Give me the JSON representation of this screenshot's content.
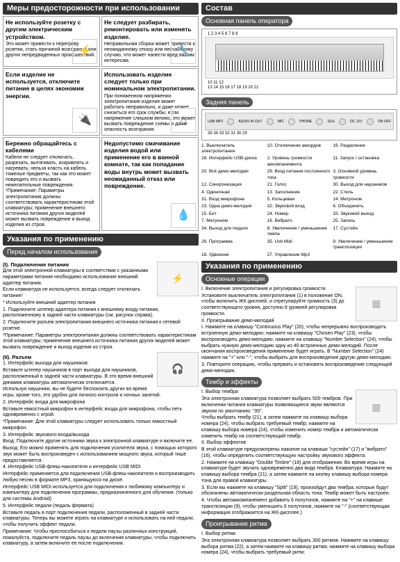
{
  "left": {
    "header": "Меры предосторожности при использовании",
    "warns": [
      {
        "t": "Не используйте розетку с другим электрическим устройством.",
        "d": "Это может привести к перегреву розетки, стать причиной возгорания или других непредвиденных происшествий.",
        "icon": "⚡"
      },
      {
        "t": "Не следует разбирать, ремонтировать или изменять изделие.",
        "d": "Неправильная сборка может привести к неожиданному отказу или несчастному случаю, что может нанести вред вашим интересам.",
        "icon": "🔧"
      },
      {
        "t": "Если изделие не используется, отключите питание в целях экономии энергии.",
        "d": "",
        "icon": "🔌"
      },
      {
        "t": "Использовать изделие следует только при номинальном электропитании.",
        "d": "При пониженном напряжении электропитания изделие может работать неправильно, и даже может снизиться его срок службы; если напряжение слишком велико, это может вызвать повреждение схемы и даже опасность возгорания.",
        "icon": "△"
      },
      {
        "t": "Бережно обращайтесь с кабелями",
        "d": "Кабели не следует отключать, разрезать, вытягивать, искривлять и нагревать; нельзя класть на кабель тяжелые предметы, так как это может повредить его и вызвать нежелательные повреждения. *Примечание: Параметры электропитания должны соответствовать характеристикам этой клавиатуры; применение внешнего источника питания других моделей может вызвать повреждение и выход изделия из строя.",
        "icon": "⌁"
      },
      {
        "t": "Недопустимо смачивание изделия водой или применение его в ванной комнате, так как попадание воды внутрь может вызвать неожиданный отказ или повреждение.",
        "d": "",
        "icon": "💧"
      }
    ],
    "instructions_header": "Указания по применению",
    "sub1": "Перед началом использования",
    "sec1_title": "(I). Подключение питания",
    "sec1": [
      "Для этой электронной клавиатуры в соответствии с указанными параметрами питания необходимо использование внешний адаптер питания.",
      "Если клавиатура не используется, всегда следует отключать питание!",
      "* Используйте внешний адаптер питания",
      "1. Подключите штепер адаптера питания к внешнему входу питания, расположенному в задней части клавиатуры (см. рисунок справа).",
      "2. Подключите разъем электропитания внешнего источника питания к сетевой розетке.",
      "*Примечание: Параметры электропитания должны соответствовать характеристикам этой клавиатуры; применение внешнего источника питания других моделей может вызвать повреждение и выход изделия из строя."
    ],
    "sec2_title": "(II). Разъем",
    "sec2": [
      "1. Интерфейс выхода для наушников:",
      "Вставьте штепер наушников в порт выхода для наушников, расположенный в задней части клавиатуры. В это время внешний динамик клавиатуры автоматически отключается.",
      "Используя наушники, вы не будете беспокоить других во время игры, кроме того, это удобно для личного контроля и ночных занятий.",
      "2. Интерфейс входа для микрофона",
      "Вставьте емкостный микрофон в интерфейс входа для микрофона, чтобы петь одновременно с игрой.",
      "*Примечание: Для этой клавиатуры следует использовать только емкостный микрофон.",
      "3. Интерфейс звукового входа/выхода",
      "Вход: Подключите другие источники звука к электронной клавиатуре и включите ее.",
      "Выход: Его можно применять для подключения усилителя звука, с помощью которого звук может быть воспроизведен с использованием мощного звука, который тише предоставляется.",
      "4. Интерфейс USB-флеш-накопителя и интерфейс USB MIDI",
      "Интерфейс применяется для подключения USB-флеш-накопителя и воспроизводить любую песню в формате MP3, хранящуюся на диске.",
      "Интерфейс USB MIDI используется для подключения к любимому компьютеру и компьютеру для подключения программы, предназначенного для обучения. (только для системы Android)",
      "5. Интерфейс педали (педаль фермата)",
      "Вставьте педаль в порт подключения педали, расположенный в задней части клавиатуры. Теперь вы можете играть на клавиатуре и использовать на ней педали, чтобы получить эффект педали.",
      "Примечание: Чтобы приспособиться к педали паузы различных конструкций, пожалуйста, подключите педаль паузы до включения клавиатуры, чтобы подключить клавиатуру, а затем включите ее после подключения."
    ]
  },
  "right": {
    "header": "Состав",
    "panel1": "Основная панель оператора",
    "panel2": "Задняя панель",
    "nums_top": "1 2 3 4 5 6 7 8 9",
    "nums_mid": "10 11 12",
    "nums_bot": "13 14 15 16 17 18 19 20 21",
    "rear_labels": [
      "USB MP3",
      "AUDIO IN OUT",
      "MIC",
      "PHONE",
      "SUS",
      "DC 12V",
      "ON OFF"
    ],
    "rear_nums": "35 34 33 32 31 30 29",
    "legend": [
      "1. Выключатель электропитания",
      "10. Отключение аккордов",
      "19. Разделение",
      "28. Интерфейс USB-диска",
      "2. Уровень громкости аккомпанемента",
      "11. Запуск / остановка",
      "20. Всё демо-мелодии",
      "29. Вход питания постоянного тока",
      "3. Основной уровень громкости",
      "12. Синхронизация",
      "21. Голос",
      "30. Выход для наушников",
      "4. Одиночная",
      "13. Заполнение",
      "22. Стиль",
      "31. Вход микрофона",
      "5. Кольцевая",
      "14. Метроном",
      "23. Одна демо-мелодия",
      "32. Звуковой вход",
      "6. Объединить",
      "15. Бит",
      "24. Номер",
      "33. Звуковой выход",
      "7. Метроном",
      "16. Вибрато",
      "25. Запись",
      "34. Выход для педали",
      "8. Увеличение / уменьшение темпа",
      "17. Сустейн",
      "26. Программа",
      "35. Usb Midi",
      "9. Увеличение / уменьшение транспозиции",
      "18. Удвоение",
      "27. Управление Mp3",
      ""
    ],
    "instructions_header": "Указания по применению",
    "sub2": "Основные операции",
    "op1": [
      "I. Включение электропитания и регулировка громкости",
      "Установите выключатель электропитания (1) в положение ON, чтобы включить ЖК-дисплей, и отрегулируйте громкость (3) до соответствующего уровня, доступно 8 уровней регулировки громкости.",
      "II. Проигрывание демо-мелодий",
      "I. Нажмите на клавишу \"Continuous Play\" (20), чтобы непрерывно воспроизводить встроенную демо-мелодию; нажмите на клавишу \"Chosen Play\" (23), чтобы воспроизводить демо-мелодию; нажмите на клавишу \"Number Selection\" (24), чтобы выбрать нужную демо-мелодию одну из 40 встроенных демо-мелодий. После окончания воспроизведения применение будет играть. В \"Number Selection\" (24) нажмите на \"+\" или \"-\", чтобы выбрать для воспроизведения другую демо-мелодию.",
      "3. Повторите операцию, чтобы прервать и остановить воспроизведение следующей демо-мелодии."
    ],
    "sub3": "Тембр и эффекты",
    "op2": [
      "I. Выбор тембра",
      "Эта электронная клавиатура позволяет выбрать 500 тембров. При включении питания клавиатуры появляющиеся звуки являются звуком по умолчанию: \"00\".",
      "Чтобы выбрать тембр (21), а затем нажмите на клавишу выбора номера (24), чтобы выбрать требуемый тембр; нажмите на клавишу выбора номера (24), чтобы изменить номер тембра и автоматически изменить тембр на соответствующий тембр.",
      "II. Выбор эффектов",
      "В этой клавиатуре предусмотрены нажатие на клавиши \"сустейн\" (17) и \"вибрато\" (16), чтобы определить соответствующую настройку звукового эффекта.",
      "2. Нажмите на клавишу \"Double Timbre\" (18) для отображения. Во время игры на клавиатуре будет звучать одновременно два вида тембра. Клавиатура: Нажмите на клавишу выбора тембра (21), а затем нажмите на кнопку клавишу выбора номера тона для правой клавиатуры.",
      "3. Если вы нажмете на клавишу \"Split\" (19), произойдут два тембра, которые будут обозначены автоматически раздельная область тона. Тембр может быть настроен.",
      "4. Чтобы автоаккомпанемент добавить 6 полутонов, нажмите на \"+\" на клавише транспозиции (9), чтобы уменьшить 6 полутонов, нажмите на \"-\" (соответствующая информация отображается на ЖК-дисплее.)"
    ],
    "sub4": "Проигрывание ритма",
    "op3": [
      "I. Выбор ритма",
      "Эта электронная клавиатура позволяет выбрать 300 ритмов. Нажмите на клавишу выбора ритма (22), а затем нажмите на клавишу ритма; нажмите на клавишу выбора номера (24), чтобы выбрать требуемый ритм;"
    ]
  }
}
